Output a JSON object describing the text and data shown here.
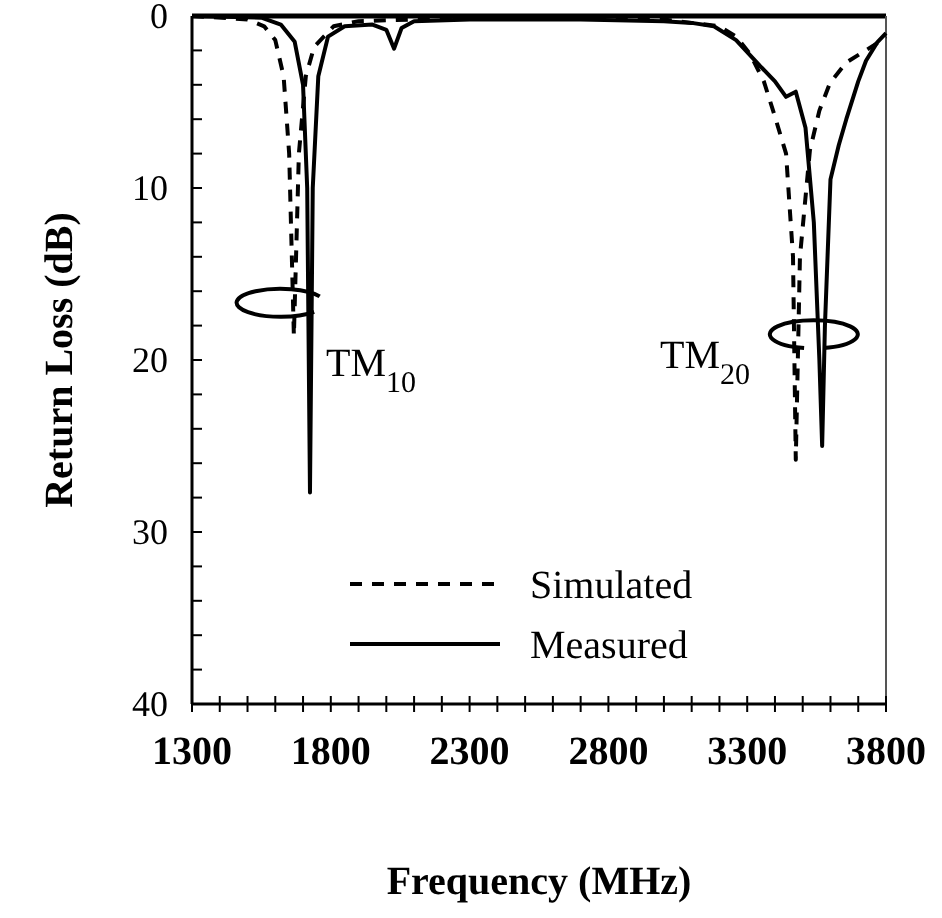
{
  "chart_data": {
    "type": "line",
    "xlabel": "Frequency (MHz)",
    "ylabel": "Return Loss (dB)",
    "xlim": [
      1300,
      3800
    ],
    "ylim": [
      40,
      0
    ],
    "xticks": [
      1300,
      {
        "value": 1400,
        "label": null
      },
      {
        "value": 1500,
        "label": null
      },
      {
        "value": 1600,
        "label": null
      },
      {
        "value": 1700,
        "label": null
      },
      1800,
      {
        "value": 1900,
        "label": null
      },
      {
        "value": 2000,
        "label": null
      },
      {
        "value": 2100,
        "label": null
      },
      {
        "value": 2200,
        "label": null
      },
      2300,
      {
        "value": 2400,
        "label": null
      },
      {
        "value": 2500,
        "label": null
      },
      {
        "value": 2600,
        "label": null
      },
      {
        "value": 2700,
        "label": null
      },
      2800,
      {
        "value": 2900,
        "label": null
      },
      {
        "value": 3000,
        "label": null
      },
      {
        "value": 3100,
        "label": null
      },
      {
        "value": 3200,
        "label": null
      },
      3300,
      {
        "value": 3400,
        "label": null
      },
      {
        "value": 3500,
        "label": null
      },
      {
        "value": 3600,
        "label": null
      },
      {
        "value": 3700,
        "label": null
      },
      3800
    ],
    "yticks": [
      0,
      {
        "value": 2,
        "label": null
      },
      {
        "value": 4,
        "label": null
      },
      {
        "value": 6,
        "label": null
      },
      {
        "value": 8,
        "label": null
      },
      10,
      {
        "value": 12,
        "label": null
      },
      {
        "value": 14,
        "label": null
      },
      {
        "value": 16,
        "label": null
      },
      {
        "value": 18,
        "label": null
      },
      20,
      {
        "value": 22,
        "label": null
      },
      {
        "value": 24,
        "label": null
      },
      {
        "value": 26,
        "label": null
      },
      {
        "value": 28,
        "label": null
      },
      30,
      {
        "value": 32,
        "label": null
      },
      {
        "value": 34,
        "label": null
      },
      {
        "value": 36,
        "label": null
      },
      {
        "value": 38,
        "label": null
      },
      40
    ],
    "grid": false,
    "legend": "bottom",
    "series": [
      {
        "name": "Simulated",
        "color": "#000000",
        "line_style": "dashed",
        "x": [
          1300,
          1500,
          1560,
          1600,
          1630,
          1650,
          1667,
          1685,
          1710,
          1740,
          1810,
          1900,
          2100,
          2600,
          3000,
          3200,
          3260,
          3310,
          3360,
          3397,
          3440,
          3465,
          3475,
          3490,
          3526,
          3560,
          3598,
          3657,
          3757,
          3800
        ],
        "values": [
          0,
          0.2,
          0.6,
          1.4,
          3.5,
          8,
          18.6,
          8,
          3.5,
          1.8,
          0.6,
          0.3,
          0.2,
          0.1,
          0.2,
          0.6,
          1.2,
          2.2,
          3.8,
          5.7,
          8,
          14,
          25.8,
          14,
          7.8,
          5.5,
          3.9,
          2.7,
          1.7,
          1.2
        ]
      },
      {
        "name": "Measured",
        "color": "#000000",
        "line_style": "solid",
        "x": [
          1300,
          1550,
          1620,
          1670,
          1700,
          1715,
          1725,
          1735,
          1755,
          1790,
          1850,
          1950,
          2000,
          2028,
          2055,
          2100,
          2300,
          2700,
          3000,
          3100,
          3180,
          3260,
          3346,
          3400,
          3440,
          3475,
          3510,
          3540,
          3560,
          3570,
          3580,
          3600,
          3630,
          3657,
          3700,
          3728,
          3770,
          3800
        ],
        "values": [
          0,
          0.1,
          0.5,
          1.5,
          4,
          10,
          27.7,
          10,
          3.5,
          1.2,
          0.6,
          0.5,
          0.8,
          1.9,
          0.7,
          0.3,
          0.2,
          0.2,
          0.3,
          0.4,
          0.6,
          1.4,
          2.9,
          3.8,
          4.7,
          4.4,
          6.5,
          12,
          20,
          25,
          18,
          9.5,
          7.5,
          6,
          3.8,
          2.6,
          1.5,
          1
        ]
      }
    ],
    "annotations": [
      "TM$_{10}$",
      "TM$_{20}$"
    ]
  }
}
